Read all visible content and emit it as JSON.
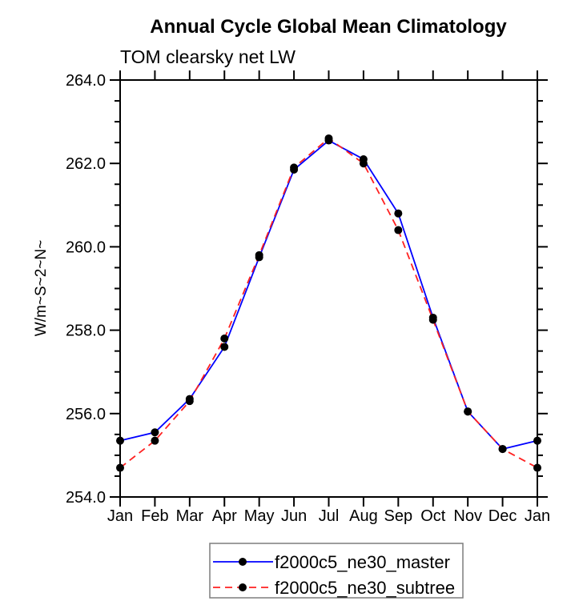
{
  "page": {
    "title": "Annual Cycle Global Mean Climatology",
    "subtitle": "TOM clearsky net LW"
  },
  "chart_data": {
    "type": "line",
    "title": "Annual Cycle Global Mean Climatology",
    "subtitle": "TOM clearsky net LW",
    "xlabel": "",
    "ylabel": "W/m~S~2~N~",
    "x_categories": [
      "Jan",
      "Feb",
      "Mar",
      "Apr",
      "May",
      "Jun",
      "Jul",
      "Aug",
      "Sep",
      "Oct",
      "Nov",
      "Dec",
      "Jan"
    ],
    "ylim": [
      254.0,
      264.0
    ],
    "y_major_step": 2.0,
    "y_minor_step": 0.5,
    "y_tick_labels": [
      "254.0",
      "256.0",
      "258.0",
      "260.0",
      "262.0",
      "264.0"
    ],
    "grid": false,
    "legend_position": "bottom-center",
    "marker": {
      "shape": "circle",
      "color": "#000000",
      "radius": 5
    },
    "axis_color": "#000000",
    "series": [
      {
        "name": "f2000c5_ne30_master",
        "color": "#0000ff",
        "style": "solid",
        "values": [
          255.35,
          255.55,
          256.35,
          257.6,
          259.75,
          261.85,
          262.55,
          262.1,
          260.8,
          258.3,
          256.05,
          255.15,
          255.35
        ]
      },
      {
        "name": "f2000c5_ne30_subtree",
        "color": "#ff2020",
        "style": "dashed",
        "values": [
          254.7,
          255.35,
          256.3,
          257.8,
          259.8,
          261.9,
          262.6,
          262.0,
          260.4,
          258.25,
          256.05,
          255.15,
          254.7
        ]
      }
    ]
  }
}
